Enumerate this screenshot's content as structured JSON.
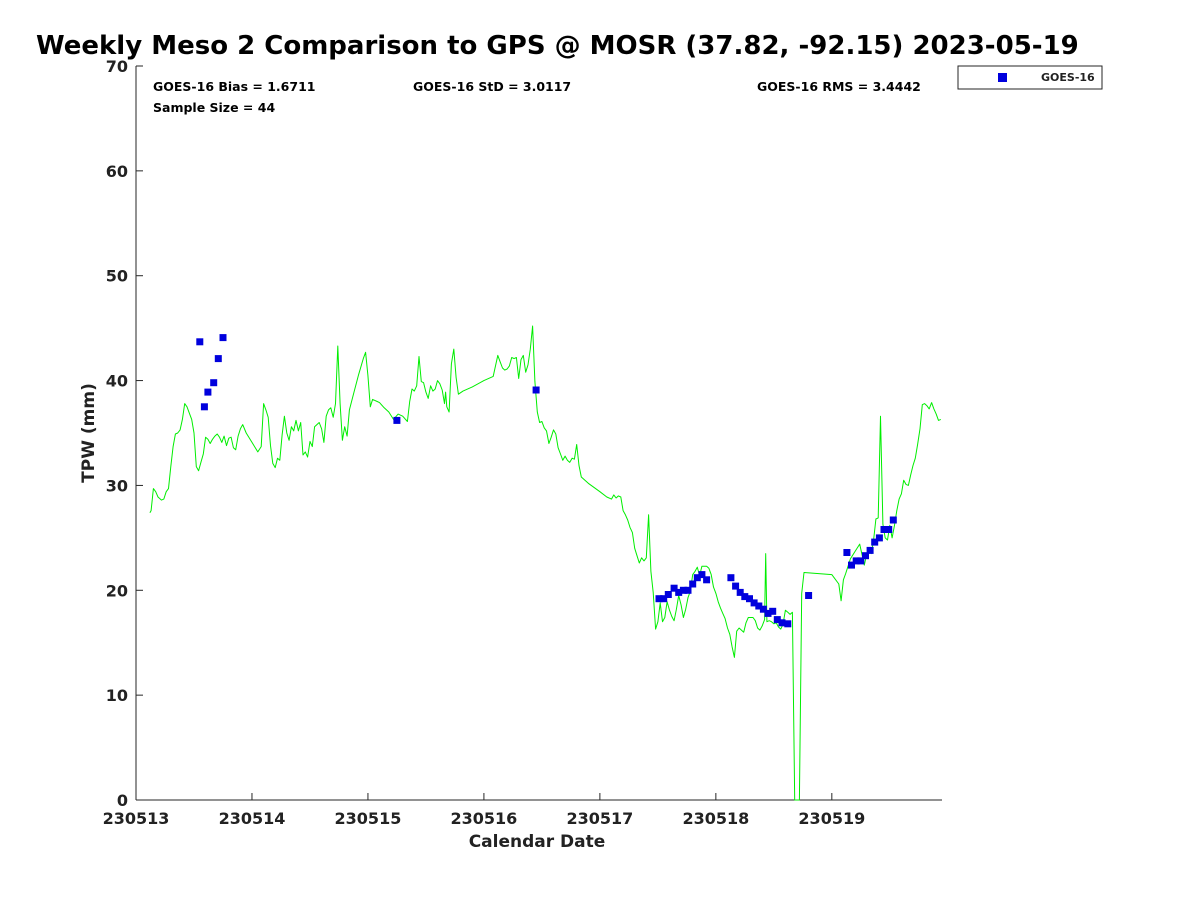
{
  "chart_data": {
    "type": "scatter",
    "title": "Weekly Meso 2 Comparison to GPS @ MOSR (37.82, -92.15) 2023-05-19",
    "xlabel": "Calendar Date",
    "ylabel": "TPW (mm)",
    "xlim": [
      0,
      6.95
    ],
    "ylim": [
      0,
      70
    ],
    "x_ticks": [
      0,
      1,
      2,
      3,
      4,
      5,
      6
    ],
    "x_tick_labels": [
      "230513",
      "230514",
      "230515",
      "230516",
      "230517",
      "230518",
      "230519"
    ],
    "y_ticks": [
      0,
      10,
      20,
      30,
      40,
      50,
      60,
      70
    ],
    "y_tick_labels": [
      "0",
      "10",
      "20",
      "30",
      "40",
      "50",
      "60",
      "70"
    ],
    "stats": {
      "bias": "GOES-16 Bias = 1.6711",
      "std": "GOES-16 StD = 3.0117",
      "rms": "GOES-16 RMS = 3.4442",
      "sample": "Sample Size = 44"
    },
    "legend": {
      "label": "GOES-16",
      "position": "top-right",
      "color": "#0000dd"
    },
    "colors": {
      "goes": "#0000dd",
      "gps": "#00ee00"
    },
    "goes_points": [
      {
        "x": 0.55,
        "y": 43.7
      },
      {
        "x": 0.59,
        "y": 37.5
      },
      {
        "x": 0.62,
        "y": 38.9
      },
      {
        "x": 0.67,
        "y": 39.8
      },
      {
        "x": 0.71,
        "y": 42.1
      },
      {
        "x": 0.75,
        "y": 44.1
      },
      {
        "x": 2.25,
        "y": 36.2
      },
      {
        "x": 3.45,
        "y": 39.1
      },
      {
        "x": 4.51,
        "y": 19.2
      },
      {
        "x": 4.55,
        "y": 19.2
      },
      {
        "x": 4.59,
        "y": 19.6
      },
      {
        "x": 4.64,
        "y": 20.2
      },
      {
        "x": 4.68,
        "y": 19.8
      },
      {
        "x": 4.72,
        "y": 20.0
      },
      {
        "x": 4.76,
        "y": 20.0
      },
      {
        "x": 4.8,
        "y": 20.6
      },
      {
        "x": 4.84,
        "y": 21.2
      },
      {
        "x": 4.88,
        "y": 21.5
      },
      {
        "x": 4.92,
        "y": 21.0
      },
      {
        "x": 5.13,
        "y": 21.2
      },
      {
        "x": 5.17,
        "y": 20.4
      },
      {
        "x": 5.21,
        "y": 19.8
      },
      {
        "x": 5.25,
        "y": 19.4
      },
      {
        "x": 5.29,
        "y": 19.2
      },
      {
        "x": 5.33,
        "y": 18.8
      },
      {
        "x": 5.37,
        "y": 18.5
      },
      {
        "x": 5.41,
        "y": 18.2
      },
      {
        "x": 5.45,
        "y": 17.8
      },
      {
        "x": 5.49,
        "y": 18.0
      },
      {
        "x": 5.53,
        "y": 17.2
      },
      {
        "x": 5.57,
        "y": 16.9
      },
      {
        "x": 5.62,
        "y": 16.8
      },
      {
        "x": 5.8,
        "y": 19.5
      },
      {
        "x": 6.13,
        "y": 23.6
      },
      {
        "x": 6.17,
        "y": 22.4
      },
      {
        "x": 6.21,
        "y": 22.8
      },
      {
        "x": 6.25,
        "y": 22.8
      },
      {
        "x": 6.29,
        "y": 23.3
      },
      {
        "x": 6.33,
        "y": 23.8
      },
      {
        "x": 6.37,
        "y": 24.6
      },
      {
        "x": 6.41,
        "y": 25.0
      },
      {
        "x": 6.45,
        "y": 25.8
      },
      {
        "x": 6.49,
        "y": 25.8
      },
      {
        "x": 6.53,
        "y": 26.7
      }
    ],
    "gps_series": [
      [
        0.12,
        27.4
      ],
      [
        0.13,
        27.6
      ],
      [
        0.15,
        29.7
      ],
      [
        0.17,
        29.4
      ],
      [
        0.19,
        28.9
      ],
      [
        0.22,
        28.6
      ],
      [
        0.24,
        28.7
      ],
      [
        0.26,
        29.4
      ],
      [
        0.28,
        29.7
      ],
      [
        0.3,
        31.8
      ],
      [
        0.32,
        33.7
      ],
      [
        0.34,
        34.9
      ],
      [
        0.36,
        35.0
      ],
      [
        0.38,
        35.3
      ],
      [
        0.4,
        36.3
      ],
      [
        0.42,
        37.8
      ],
      [
        0.44,
        37.5
      ],
      [
        0.46,
        36.9
      ],
      [
        0.48,
        36.3
      ],
      [
        0.5,
        35.0
      ],
      [
        0.52,
        31.8
      ],
      [
        0.54,
        31.4
      ],
      [
        0.56,
        32.2
      ],
      [
        0.58,
        33.0
      ],
      [
        0.6,
        34.6
      ],
      [
        0.62,
        34.4
      ],
      [
        0.64,
        34.0
      ],
      [
        0.66,
        34.4
      ],
      [
        0.68,
        34.7
      ],
      [
        0.7,
        34.9
      ],
      [
        0.72,
        34.6
      ],
      [
        0.74,
        34.1
      ],
      [
        0.76,
        34.7
      ],
      [
        0.78,
        33.8
      ],
      [
        0.8,
        34.5
      ],
      [
        0.82,
        34.6
      ],
      [
        0.84,
        33.6
      ],
      [
        0.86,
        33.4
      ],
      [
        0.88,
        34.7
      ],
      [
        0.9,
        35.4
      ],
      [
        0.92,
        35.8
      ],
      [
        0.95,
        35.0
      ],
      [
        1.0,
        34.1
      ],
      [
        1.05,
        33.2
      ],
      [
        1.08,
        33.7
      ],
      [
        1.1,
        37.8
      ],
      [
        1.12,
        37.2
      ],
      [
        1.14,
        36.5
      ],
      [
        1.16,
        33.8
      ],
      [
        1.18,
        32.1
      ],
      [
        1.2,
        31.7
      ],
      [
        1.22,
        32.6
      ],
      [
        1.24,
        32.4
      ],
      [
        1.26,
        34.8
      ],
      [
        1.28,
        36.6
      ],
      [
        1.3,
        35.0
      ],
      [
        1.32,
        34.3
      ],
      [
        1.34,
        35.6
      ],
      [
        1.36,
        35.2
      ],
      [
        1.38,
        36.2
      ],
      [
        1.4,
        35.2
      ],
      [
        1.42,
        36.0
      ],
      [
        1.44,
        32.9
      ],
      [
        1.46,
        33.2
      ],
      [
        1.48,
        32.7
      ],
      [
        1.5,
        34.2
      ],
      [
        1.52,
        33.7
      ],
      [
        1.54,
        35.6
      ],
      [
        1.56,
        35.8
      ],
      [
        1.58,
        36.0
      ],
      [
        1.6,
        35.4
      ],
      [
        1.62,
        34.1
      ],
      [
        1.64,
        36.6
      ],
      [
        1.66,
        37.2
      ],
      [
        1.68,
        37.4
      ],
      [
        1.7,
        36.5
      ],
      [
        1.72,
        37.8
      ],
      [
        1.74,
        43.3
      ],
      [
        1.76,
        37.8
      ],
      [
        1.78,
        34.3
      ],
      [
        1.8,
        35.6
      ],
      [
        1.82,
        34.7
      ],
      [
        1.84,
        37.2
      ],
      [
        1.88,
        38.9
      ],
      [
        1.92,
        40.6
      ],
      [
        1.96,
        42.1
      ],
      [
        1.98,
        42.7
      ],
      [
        2.0,
        40.5
      ],
      [
        2.02,
        37.5
      ],
      [
        2.04,
        38.2
      ],
      [
        2.08,
        38.0
      ],
      [
        2.1,
        37.9
      ],
      [
        2.14,
        37.4
      ],
      [
        2.18,
        37.0
      ],
      [
        2.22,
        36.3
      ],
      [
        2.26,
        36.8
      ],
      [
        2.3,
        36.6
      ],
      [
        2.34,
        36.1
      ],
      [
        2.36,
        38.0
      ],
      [
        2.38,
        39.2
      ],
      [
        2.4,
        39.0
      ],
      [
        2.42,
        39.5
      ],
      [
        2.44,
        42.3
      ],
      [
        2.46,
        39.9
      ],
      [
        2.48,
        39.8
      ],
      [
        2.5,
        38.9
      ],
      [
        2.52,
        38.3
      ],
      [
        2.54,
        39.5
      ],
      [
        2.56,
        39.0
      ],
      [
        2.58,
        39.2
      ],
      [
        2.6,
        40.0
      ],
      [
        2.62,
        39.7
      ],
      [
        2.64,
        39.1
      ],
      [
        2.66,
        37.8
      ],
      [
        2.67,
        38.9
      ],
      [
        2.68,
        37.5
      ],
      [
        2.7,
        37.0
      ],
      [
        2.72,
        41.6
      ],
      [
        2.74,
        43.0
      ],
      [
        2.76,
        40.3
      ],
      [
        2.78,
        38.7
      ],
      [
        2.82,
        39.0
      ],
      [
        2.9,
        39.4
      ],
      [
        3.0,
        40.0
      ],
      [
        3.08,
        40.4
      ],
      [
        3.12,
        42.4
      ],
      [
        3.14,
        41.8
      ],
      [
        3.16,
        41.2
      ],
      [
        3.18,
        41.0
      ],
      [
        3.2,
        41.1
      ],
      [
        3.22,
        41.4
      ],
      [
        3.24,
        42.2
      ],
      [
        3.26,
        42.1
      ],
      [
        3.28,
        42.2
      ],
      [
        3.3,
        40.2
      ],
      [
        3.32,
        42.0
      ],
      [
        3.34,
        42.4
      ],
      [
        3.36,
        40.8
      ],
      [
        3.38,
        41.5
      ],
      [
        3.4,
        43.0
      ],
      [
        3.42,
        45.2
      ],
      [
        3.44,
        39.9
      ],
      [
        3.46,
        37.0
      ],
      [
        3.48,
        36.0
      ],
      [
        3.5,
        36.1
      ],
      [
        3.52,
        35.5
      ],
      [
        3.54,
        35.2
      ],
      [
        3.56,
        34.0
      ],
      [
        3.58,
        34.6
      ],
      [
        3.6,
        35.3
      ],
      [
        3.62,
        34.9
      ],
      [
        3.64,
        33.6
      ],
      [
        3.66,
        33.0
      ],
      [
        3.68,
        32.4
      ],
      [
        3.7,
        32.8
      ],
      [
        3.72,
        32.4
      ],
      [
        3.74,
        32.2
      ],
      [
        3.76,
        32.6
      ],
      [
        3.78,
        32.5
      ],
      [
        3.8,
        33.9
      ],
      [
        3.82,
        31.9
      ],
      [
        3.84,
        30.8
      ],
      [
        3.9,
        30.2
      ],
      [
        4.0,
        29.4
      ],
      [
        4.06,
        28.9
      ],
      [
        4.1,
        28.7
      ],
      [
        4.12,
        29.1
      ],
      [
        4.14,
        28.8
      ],
      [
        4.16,
        29.0
      ],
      [
        4.18,
        28.9
      ],
      [
        4.2,
        27.6
      ],
      [
        4.22,
        27.2
      ],
      [
        4.24,
        26.7
      ],
      [
        4.26,
        26.0
      ],
      [
        4.28,
        25.5
      ],
      [
        4.3,
        24.0
      ],
      [
        4.32,
        23.3
      ],
      [
        4.34,
        22.6
      ],
      [
        4.36,
        23.1
      ],
      [
        4.38,
        22.8
      ],
      [
        4.4,
        23.1
      ],
      [
        4.42,
        27.2
      ],
      [
        4.44,
        21.8
      ],
      [
        4.46,
        19.8
      ],
      [
        4.48,
        16.3
      ],
      [
        4.5,
        17.0
      ],
      [
        4.52,
        18.8
      ],
      [
        4.54,
        17.0
      ],
      [
        4.56,
        17.4
      ],
      [
        4.58,
        18.9
      ],
      [
        4.6,
        18.1
      ],
      [
        4.62,
        17.5
      ],
      [
        4.64,
        17.1
      ],
      [
        4.66,
        18.2
      ],
      [
        4.68,
        19.5
      ],
      [
        4.7,
        18.6
      ],
      [
        4.72,
        17.4
      ],
      [
        4.74,
        18.2
      ],
      [
        4.76,
        19.3
      ],
      [
        4.78,
        19.9
      ],
      [
        4.8,
        21.5
      ],
      [
        4.82,
        21.8
      ],
      [
        4.84,
        22.2
      ],
      [
        4.86,
        21.4
      ],
      [
        4.88,
        22.3
      ],
      [
        4.92,
        22.3
      ],
      [
        4.94,
        22.1
      ],
      [
        4.96,
        21.5
      ],
      [
        4.98,
        20.3
      ],
      [
        5.0,
        19.7
      ],
      [
        5.02,
        18.9
      ],
      [
        5.04,
        18.3
      ],
      [
        5.06,
        17.8
      ],
      [
        5.08,
        17.3
      ],
      [
        5.1,
        16.4
      ],
      [
        5.12,
        15.8
      ],
      [
        5.14,
        14.6
      ],
      [
        5.16,
        13.6
      ],
      [
        5.18,
        16.1
      ],
      [
        5.2,
        16.4
      ],
      [
        5.22,
        16.2
      ],
      [
        5.24,
        16.0
      ],
      [
        5.26,
        16.9
      ],
      [
        5.28,
        17.4
      ],
      [
        5.32,
        17.4
      ],
      [
        5.34,
        17.1
      ],
      [
        5.36,
        16.4
      ],
      [
        5.38,
        16.2
      ],
      [
        5.4,
        16.6
      ],
      [
        5.42,
        17.2
      ],
      [
        5.43,
        23.5
      ],
      [
        5.44,
        17.0
      ],
      [
        5.46,
        17.1
      ],
      [
        5.48,
        17.0
      ],
      [
        5.5,
        16.8
      ],
      [
        5.52,
        16.9
      ],
      [
        5.54,
        16.5
      ],
      [
        5.56,
        16.3
      ],
      [
        5.58,
        16.8
      ],
      [
        5.6,
        18.1
      ],
      [
        5.62,
        17.9
      ],
      [
        5.64,
        17.7
      ],
      [
        5.66,
        17.9
      ],
      [
        5.68,
        0.0
      ],
      [
        5.72,
        0.0
      ],
      [
        5.74,
        19.7
      ],
      [
        5.76,
        21.7
      ],
      [
        6.0,
        21.5
      ],
      [
        6.06,
        20.6
      ],
      [
        6.08,
        19.0
      ],
      [
        6.1,
        21.0
      ],
      [
        6.12,
        21.6
      ],
      [
        6.16,
        23.0
      ],
      [
        6.2,
        23.7
      ],
      [
        6.24,
        24.4
      ],
      [
        6.28,
        22.4
      ],
      [
        6.3,
        23.4
      ],
      [
        6.32,
        23.9
      ],
      [
        6.34,
        23.5
      ],
      [
        6.36,
        24.8
      ],
      [
        6.38,
        26.8
      ],
      [
        6.4,
        26.9
      ],
      [
        6.42,
        36.6
      ],
      [
        6.44,
        26.3
      ],
      [
        6.46,
        25.0
      ],
      [
        6.48,
        24.8
      ],
      [
        6.5,
        26.2
      ],
      [
        6.52,
        25.0
      ],
      [
        6.54,
        26.2
      ],
      [
        6.56,
        27.6
      ],
      [
        6.58,
        28.7
      ],
      [
        6.6,
        29.2
      ],
      [
        6.62,
        30.5
      ],
      [
        6.64,
        30.1
      ],
      [
        6.66,
        30.0
      ],
      [
        6.68,
        31.0
      ],
      [
        6.7,
        31.9
      ],
      [
        6.72,
        32.6
      ],
      [
        6.74,
        33.9
      ],
      [
        6.76,
        35.4
      ],
      [
        6.78,
        37.7
      ],
      [
        6.8,
        37.8
      ],
      [
        6.82,
        37.6
      ],
      [
        6.84,
        37.3
      ],
      [
        6.86,
        37.9
      ],
      [
        6.88,
        37.3
      ],
      [
        6.9,
        36.8
      ],
      [
        6.92,
        36.2
      ],
      [
        6.94,
        36.3
      ]
    ]
  }
}
